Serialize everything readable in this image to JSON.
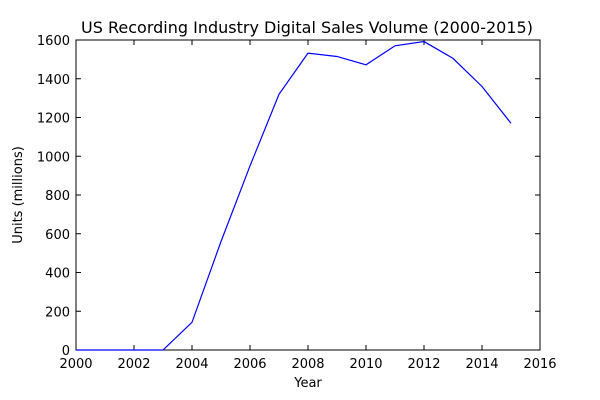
{
  "chart_data": {
    "type": "line",
    "title": "US Recording Industry Digital Sales Volume (2000-2015)",
    "xlabel": "Year",
    "ylabel": "Units (millions)",
    "xlim": [
      2000,
      2016
    ],
    "ylim": [
      0,
      1600
    ],
    "xticks": [
      2000,
      2002,
      2004,
      2006,
      2008,
      2010,
      2012,
      2014,
      2016
    ],
    "yticks": [
      0,
      200,
      400,
      600,
      800,
      1000,
      1200,
      1400,
      1600
    ],
    "grid": false,
    "series": [
      {
        "color": "#0000ff",
        "x": [
          2000,
          2001,
          2002,
          2003,
          2004,
          2005,
          2006,
          2007,
          2008,
          2009,
          2010,
          2011,
          2012,
          2013,
          2014,
          2015
        ],
        "y": [
          0,
          0,
          0,
          0,
          143,
          560,
          950,
          1320,
          1532,
          1515,
          1472,
          1570,
          1592,
          1505,
          1360,
          1170
        ]
      }
    ]
  }
}
